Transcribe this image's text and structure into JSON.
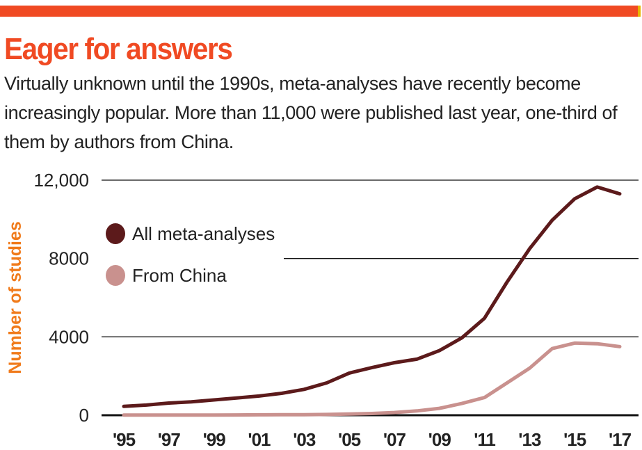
{
  "header": {
    "title": "Eager for answers",
    "subtitle": "Virtually unknown until the 1990s, meta-analyses have recently become increasingly popular. More than 11,000 were published last year, one-third of them by authors from China."
  },
  "colors": {
    "accent": "#f04a23",
    "axis_title": "#f07a1a",
    "series_all": "#5c1a1b",
    "series_china": "#c9918e"
  },
  "chart_data": {
    "type": "line",
    "title": "Eager for answers",
    "ylabel": "Number of studies",
    "xlabel": "",
    "ylim": [
      0,
      12000
    ],
    "yticks": [
      0,
      4000,
      8000,
      12000
    ],
    "ytick_labels": [
      "0",
      "4000",
      "8000",
      "12,000"
    ],
    "xticks": [
      1995,
      1997,
      1999,
      2001,
      2003,
      2005,
      2007,
      2009,
      2011,
      2013,
      2015,
      2017
    ],
    "xtick_labels": [
      "'95",
      "'97",
      "'99",
      "'01",
      "'03",
      "'05",
      "'07",
      "'09",
      "'11",
      "'13",
      "'15",
      "'17"
    ],
    "grid": true,
    "legend_position": "top-left",
    "x": [
      1995,
      1996,
      1997,
      1998,
      1999,
      2000,
      2001,
      2002,
      2003,
      2004,
      2005,
      2006,
      2007,
      2008,
      2009,
      2010,
      2011,
      2012,
      2013,
      2014,
      2015,
      2016,
      2017
    ],
    "series": [
      {
        "name": "All meta-analyses",
        "color": "#5c1a1b",
        "values": [
          450,
          520,
          620,
          680,
          780,
          880,
          980,
          1120,
          1320,
          1650,
          2150,
          2430,
          2680,
          2860,
          3300,
          3950,
          4950,
          6800,
          8500,
          9950,
          11050,
          11650,
          11300
        ]
      },
      {
        "name": "From China",
        "color": "#c9918e",
        "values": [
          10,
          10,
          10,
          10,
          10,
          15,
          20,
          25,
          30,
          40,
          60,
          90,
          140,
          220,
          350,
          600,
          900,
          1650,
          2400,
          3400,
          3680,
          3650,
          3500
        ]
      }
    ]
  }
}
